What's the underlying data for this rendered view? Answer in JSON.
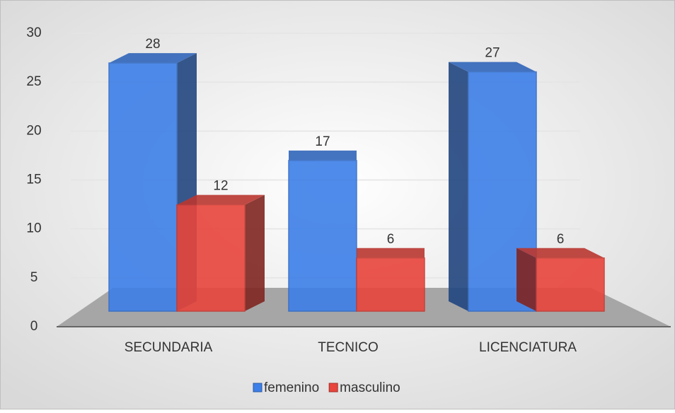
{
  "chart_data": {
    "type": "bar3d",
    "categories": [
      "SECUNDARIA",
      "TECNICO",
      "LICENCIATURA"
    ],
    "series": [
      {
        "name": "femenino",
        "color": "#3d7fe8",
        "values": [
          28,
          17,
          27
        ]
      },
      {
        "name": "masculino",
        "color": "#e8453c",
        "values": [
          12,
          6,
          6
        ]
      }
    ],
    "ylim": [
      0,
      30
    ],
    "yticks": [
      0,
      5,
      10,
      15,
      20,
      25,
      30
    ],
    "grid": true,
    "legend": "bottom"
  }
}
